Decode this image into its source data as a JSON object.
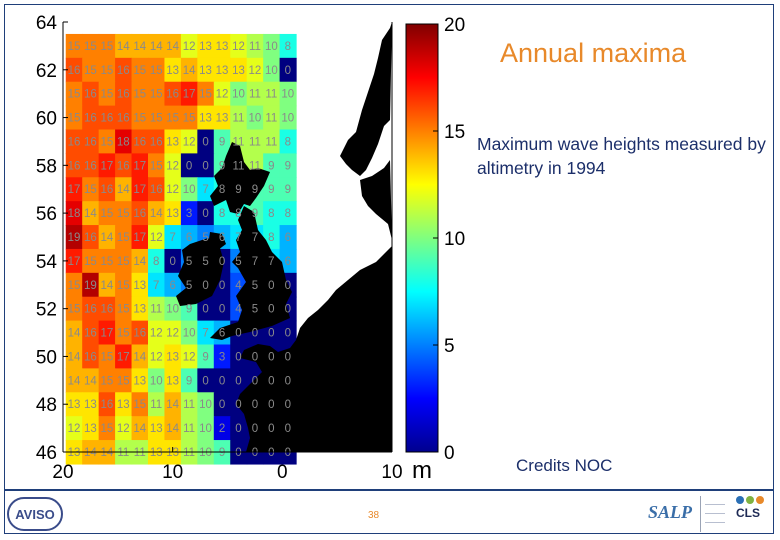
{
  "title": "Annual maxima",
  "description": "Maximum wave heights measured by altimetry in 1994",
  "credits": "Credits NOC",
  "footer": {
    "page_number": "38",
    "logo_left": "AVISO",
    "logo_mid": "SALP",
    "logo_right": "CLS"
  },
  "colors": {
    "accent_orange": "#e8892a",
    "text_navy": "#1c2f6a",
    "frame": "#1f3f7a",
    "land": "#000000"
  },
  "chart_data": {
    "type": "heatmap",
    "title": "Annual maxima",
    "subtitle": "Maximum wave heights measured by altimetry in 1994",
    "colorbar": {
      "min": 0,
      "max": 20,
      "ticks": [
        0,
        5,
        10,
        15,
        20
      ],
      "unit": "m",
      "colormap": "jet"
    },
    "x_axis": {
      "range": [
        -20,
        10
      ],
      "ticks": [
        -20,
        -10,
        0,
        10
      ],
      "tick_labels": [
        "20",
        "10",
        "0",
        "10"
      ]
    },
    "y_axis": {
      "range": [
        46,
        64
      ],
      "ticks": [
        46,
        48,
        50,
        52,
        54,
        56,
        58,
        60,
        62,
        64
      ],
      "tick_labels": [
        "46",
        "48",
        "50",
        "52",
        "54",
        "56",
        "58",
        "60",
        "62",
        "64"
      ]
    },
    "cell_size_deg": {
      "lon": 1.5,
      "lat": 1.0
    },
    "grid_lon_start": -19,
    "grid_lat_start": 63,
    "rows": [
      [
        15,
        15,
        15,
        14,
        14,
        14,
        14,
        12,
        13,
        13,
        12,
        11,
        10,
        8
      ],
      [
        16,
        15,
        15,
        16,
        15,
        15,
        13,
        14,
        13,
        13,
        13,
        12,
        10,
        0
      ],
      [
        15,
        16,
        15,
        16,
        15,
        15,
        16,
        17,
        15,
        12,
        10,
        11,
        11,
        10
      ],
      [
        15,
        16,
        16,
        16,
        15,
        15,
        15,
        15,
        13,
        13,
        11,
        10,
        11,
        10
      ],
      [
        16,
        16,
        15,
        18,
        16,
        16,
        13,
        12,
        0,
        9,
        11,
        11,
        11,
        8
      ],
      [
        16,
        16,
        17,
        16,
        17,
        15,
        12,
        0,
        0,
        9,
        11,
        11,
        9,
        9
      ],
      [
        17,
        15,
        16,
        14,
        17,
        16,
        12,
        10,
        7,
        8,
        9,
        9,
        9,
        9
      ],
      [
        18,
        14,
        15,
        15,
        16,
        14,
        13,
        3,
        0,
        8,
        8,
        9,
        8,
        8
      ],
      [
        19,
        16,
        14,
        15,
        17,
        12,
        7,
        6,
        5,
        6,
        7,
        7,
        8,
        6
      ],
      [
        17,
        15,
        15,
        15,
        14,
        8,
        0,
        5,
        5,
        0,
        5,
        7,
        7,
        6
      ],
      [
        15,
        19,
        14,
        15,
        13,
        7,
        6,
        5,
        0,
        0,
        4,
        5,
        0,
        0
      ],
      [
        15,
        16,
        16,
        15,
        13,
        11,
        10,
        9,
        0,
        0,
        4,
        5,
        0,
        0
      ],
      [
        14,
        16,
        17,
        15,
        16,
        12,
        12,
        10,
        7,
        6,
        0,
        0,
        0,
        0
      ],
      [
        14,
        16,
        15,
        17,
        14,
        12,
        13,
        12,
        9,
        3,
        0,
        0,
        0,
        0
      ],
      [
        14,
        14,
        15,
        15,
        13,
        10,
        13,
        9,
        0,
        0,
        0,
        0,
        0,
        0
      ],
      [
        13,
        13,
        16,
        13,
        15,
        11,
        14,
        11,
        10,
        0,
        0,
        0,
        0,
        0
      ],
      [
        12,
        13,
        15,
        12,
        14,
        13,
        14,
        11,
        10,
        2,
        0,
        0,
        0,
        0
      ],
      [
        13,
        14,
        14,
        11,
        11,
        13,
        13,
        11,
        10,
        9,
        0,
        0,
        0,
        0
      ]
    ]
  }
}
